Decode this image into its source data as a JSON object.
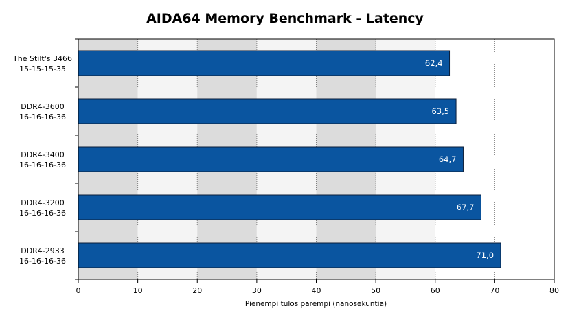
{
  "chart_data": {
    "type": "bar",
    "orientation": "horizontal",
    "title": "AIDA64 Memory Benchmark - Latency",
    "xlabel": "Pienempi tulos parempi (nanosekuntia)",
    "ylabel": "",
    "xlim": [
      0,
      80
    ],
    "x_ticks": [
      0,
      10,
      20,
      30,
      40,
      50,
      60,
      70,
      80
    ],
    "grid": true,
    "categories": [
      [
        "The Stilt's 3466",
        "15-15-15-35"
      ],
      [
        "DDR4-3600",
        "16-16-16-36"
      ],
      [
        "DDR4-3400",
        "16-16-16-36"
      ],
      [
        "DDR4-3200",
        "16-16-16-36"
      ],
      [
        "DDR4-2933",
        "16-16-16-36"
      ]
    ],
    "values": [
      62.4,
      63.5,
      64.7,
      67.7,
      71.0
    ],
    "value_labels": [
      "62,4",
      "63,5",
      "64,7",
      "67,7",
      "71,0"
    ],
    "colors": {
      "bar": "#0a55a0",
      "bar_border": "#0b1e3a",
      "plot_band_dark": "#dcdcdc",
      "plot_band_light": "#f4f4f4",
      "plot_right_bg": "#ffffff",
      "gridline": "#7f7f7f"
    }
  }
}
